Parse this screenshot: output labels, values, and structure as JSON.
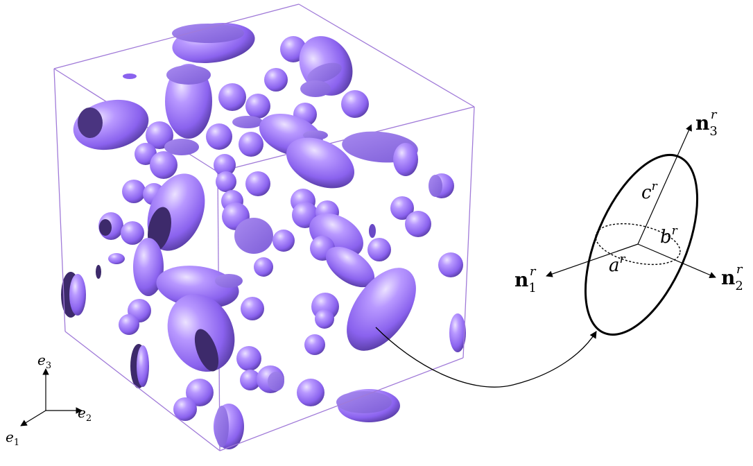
{
  "colors": {
    "particle": "#9a74f0",
    "particle_light": "#c6b0ff",
    "particle_dark": "#4a3480",
    "box_edge": "#9a6fd6",
    "line": "#000000"
  },
  "axes": {
    "e3": {
      "base": "e",
      "sub": "3"
    },
    "e2": {
      "base": "e",
      "sub": "2"
    },
    "e1": {
      "base": "e",
      "sub": "1"
    }
  },
  "ellipsoid_labels": {
    "n3": {
      "base": "n",
      "sub": "3",
      "sup": "r"
    },
    "n1": {
      "base": "n",
      "sub": "1",
      "sup": "r"
    },
    "n2": {
      "base": "n",
      "sub": "2",
      "sup": "r"
    },
    "c": {
      "base": "c",
      "sup": "r"
    },
    "b": {
      "base": "b",
      "sup": "r"
    },
    "a": {
      "base": "a",
      "sup": "r"
    }
  }
}
